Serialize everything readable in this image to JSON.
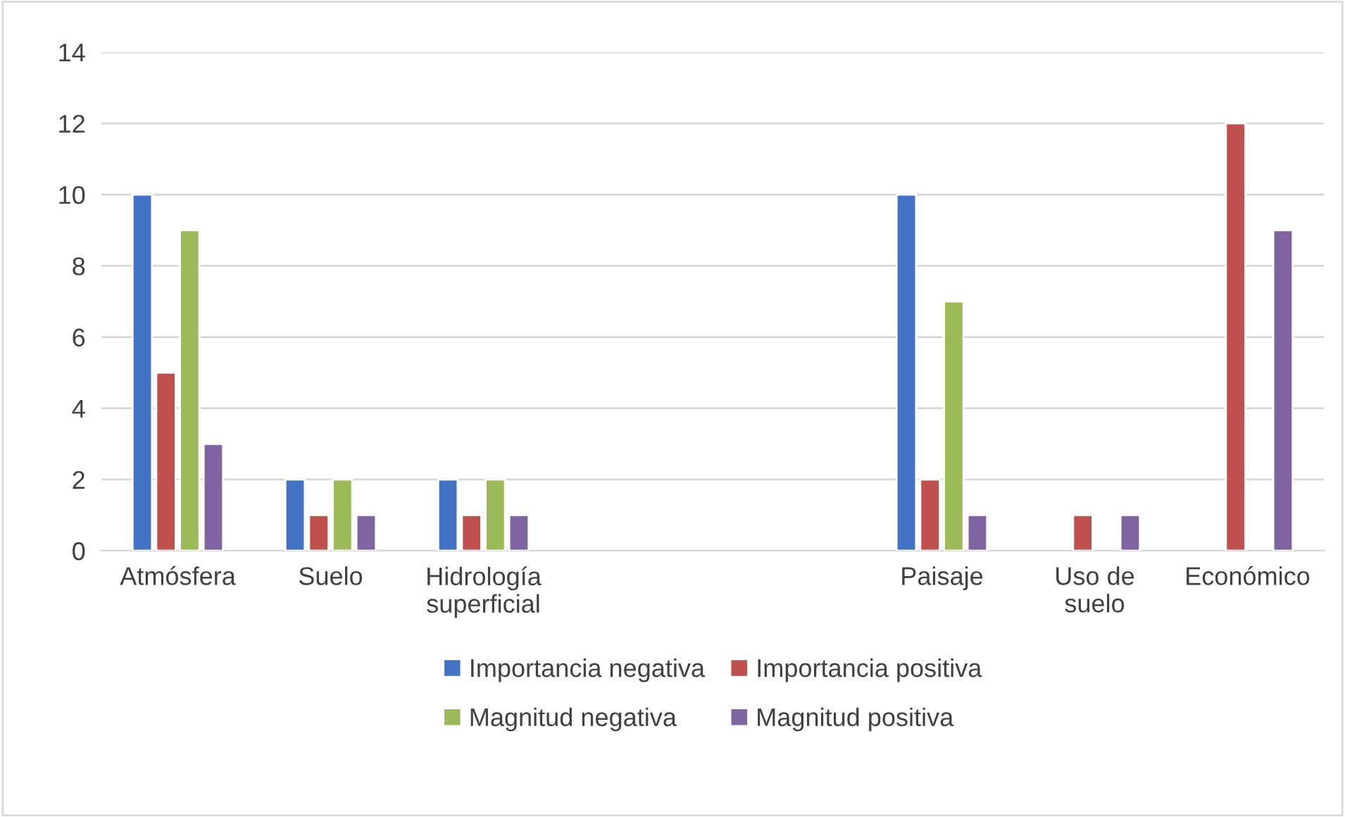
{
  "chart_data": {
    "type": "bar",
    "categories": [
      "Atmósfera",
      "Suelo",
      "Hidrología\nsuperficial",
      null,
      null,
      "Paisaje",
      "Uso de\nsuelo",
      "Económico"
    ],
    "series": [
      {
        "name": "Importancia negativa",
        "color": "#4472c4",
        "values": [
          10,
          2,
          2,
          null,
          null,
          10,
          null,
          null
        ]
      },
      {
        "name": "Importancia positiva",
        "color": "#c0504d",
        "values": [
          5,
          1,
          1,
          null,
          null,
          2,
          1,
          12
        ]
      },
      {
        "name": "Magnitud negativa",
        "color": "#9bbb59",
        "values": [
          9,
          2,
          2,
          null,
          null,
          7,
          null,
          null
        ]
      },
      {
        "name": "Magnitud positiva",
        "color": "#8064a2",
        "values": [
          3,
          1,
          1,
          null,
          null,
          1,
          1,
          9
        ]
      }
    ],
    "ylim": [
      0,
      14
    ],
    "yticks": [
      0,
      2,
      4,
      6,
      8,
      10,
      12,
      14
    ],
    "grid": "y",
    "legend": "bottom"
  }
}
